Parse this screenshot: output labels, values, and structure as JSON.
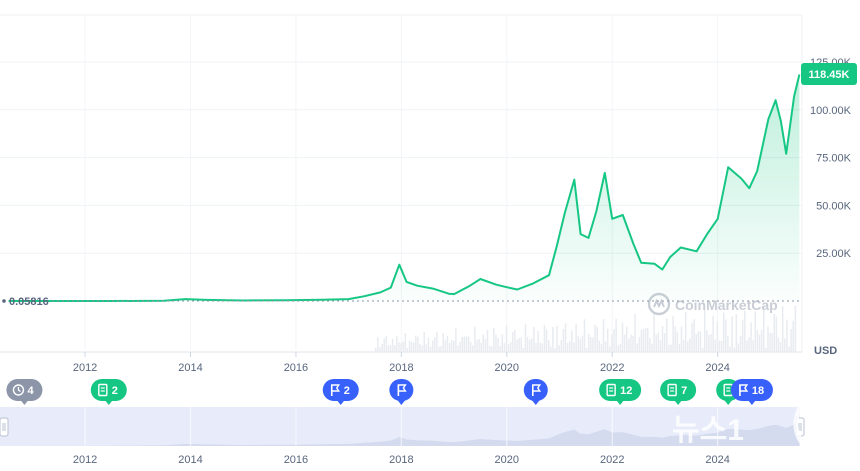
{
  "chart_data": {
    "type": "area",
    "title": "",
    "xlabel": "",
    "ylabel": "USD",
    "currency_label": "USD",
    "x_range": [
      2010.5,
      2025.6
    ],
    "ylim": [
      0,
      125000
    ],
    "y_ticks": [
      "25.00K",
      "50.00K",
      "75.00K",
      "100.00K",
      "125.00K"
    ],
    "y_tick_values": [
      25000,
      50000,
      75000,
      100000,
      125000
    ],
    "x_ticks": [
      "2012",
      "2014",
      "2016",
      "2018",
      "2020",
      "2022",
      "2024"
    ],
    "x_tick_values": [
      2012,
      2014,
      2016,
      2018,
      2020,
      2022,
      2024
    ],
    "start_price_label": "0.05816",
    "current_price_label": "118.45K",
    "grid": true,
    "series": [
      {
        "color": "#16c784",
        "x": [
          2010.55,
          2011.5,
          2012.5,
          2013.5,
          2013.9,
          2014.3,
          2015.0,
          2015.8,
          2016.5,
          2017.0,
          2017.3,
          2017.6,
          2017.8,
          2017.96,
          2018.1,
          2018.3,
          2018.6,
          2018.9,
          2019.0,
          2019.3,
          2019.5,
          2019.8,
          2020.0,
          2020.2,
          2020.5,
          2020.8,
          2020.95,
          2021.1,
          2021.28,
          2021.4,
          2021.55,
          2021.7,
          2021.86,
          2022.0,
          2022.2,
          2022.4,
          2022.55,
          2022.8,
          2022.95,
          2023.1,
          2023.3,
          2023.6,
          2023.8,
          2024.0,
          2024.2,
          2024.45,
          2024.6,
          2024.75,
          2024.96,
          2025.1,
          2025.2,
          2025.3,
          2025.45,
          2025.55
        ],
        "y": [
          0.06,
          5,
          12,
          130,
          1000,
          600,
          250,
          400,
          650,
          1000,
          2500,
          4500,
          7000,
          19000,
          10000,
          8000,
          6500,
          3800,
          3600,
          8000,
          11500,
          8500,
          7200,
          6000,
          9200,
          13500,
          29000,
          46000,
          63500,
          35000,
          33000,
          47000,
          67000,
          43000,
          45000,
          30000,
          20000,
          19500,
          16500,
          23000,
          28000,
          26000,
          35000,
          43000,
          70000,
          64000,
          59000,
          68000,
          95000,
          105000,
          94000,
          77000,
          107000,
          118450
        ]
      }
    ]
  },
  "event_markers": [
    {
      "label": "4",
      "icon": "history-icon",
      "kind": "history",
      "color": "#8c96a8",
      "x": 2010.85
    },
    {
      "label": "2",
      "icon": "document-icon",
      "kind": "news",
      "color": "#16c784",
      "x": 2012.45
    },
    {
      "label": "2",
      "icon": "flag-icon",
      "kind": "event",
      "color": "#3861fb",
      "x": 2016.85
    },
    {
      "label": "",
      "icon": "flag-icon",
      "kind": "event",
      "color": "#3861fb",
      "x": 2018.0
    },
    {
      "label": "",
      "icon": "flag-icon",
      "kind": "event",
      "color": "#3861fb",
      "x": 2020.55
    },
    {
      "label": "12",
      "icon": "document-icon",
      "kind": "news",
      "color": "#16c784",
      "x": 2022.15
    },
    {
      "label": "7",
      "icon": "document-icon",
      "kind": "news",
      "color": "#16c784",
      "x": 2023.25
    },
    {
      "label": "",
      "icon": "document-icon",
      "kind": "news",
      "color": "#16c784",
      "x": 2024.2
    },
    {
      "label": "18",
      "icon": "flag-icon",
      "kind": "event",
      "color": "#3861fb",
      "x": 2024.65
    }
  ],
  "navigator": {
    "x_ticks": [
      "2012",
      "2014",
      "2016",
      "2018",
      "2020",
      "2022",
      "2024"
    ]
  },
  "watermark": {
    "text": "CoinMarketCap",
    "icon": "coinmarketcap-logo-icon"
  },
  "overlay_watermark": {
    "text": "뉴스1",
    "icon": "news1-logo-icon"
  },
  "colors": {
    "up": "#16c784",
    "flag": "#3861fb",
    "history": "#8c96a8",
    "grid": "#eff2f5",
    "navigator_bg": "#e8ecfa"
  }
}
